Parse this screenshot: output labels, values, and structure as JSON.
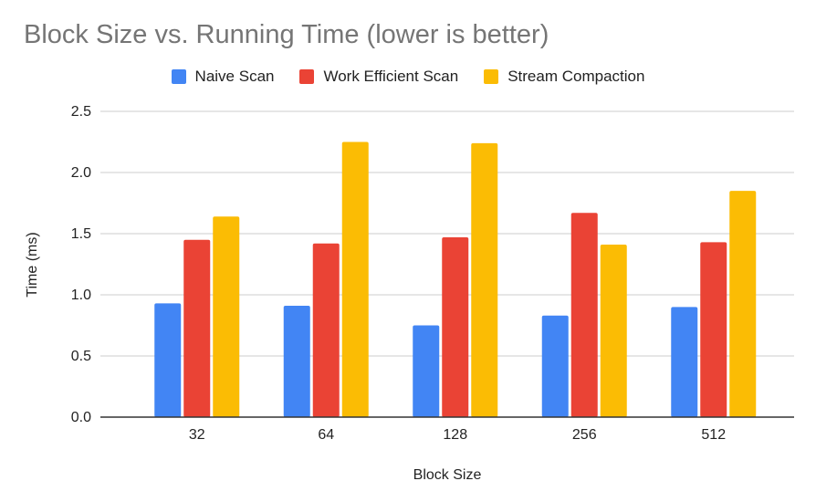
{
  "chart_data": {
    "type": "bar",
    "title": "Block Size vs. Running Time (lower is better)",
    "xlabel": "Block Size",
    "ylabel": "Time (ms)",
    "categories": [
      "32",
      "64",
      "128",
      "256",
      "512"
    ],
    "series": [
      {
        "name": "Naive Scan",
        "color": "#4285F4",
        "values": [
          0.93,
          0.91,
          0.75,
          0.83,
          0.9
        ]
      },
      {
        "name": "Work Efficient Scan",
        "color": "#EA4335",
        "values": [
          1.45,
          1.42,
          1.47,
          1.67,
          1.43
        ]
      },
      {
        "name": "Stream Compaction",
        "color": "#FBBC04",
        "values": [
          1.64,
          2.25,
          2.24,
          1.41,
          1.85
        ]
      }
    ],
    "ylim": [
      0,
      2.5
    ],
    "yticks": [
      "0.0",
      "0.5",
      "1.0",
      "1.5",
      "2.0",
      "2.5"
    ],
    "grid": true,
    "legend_position": "top"
  }
}
